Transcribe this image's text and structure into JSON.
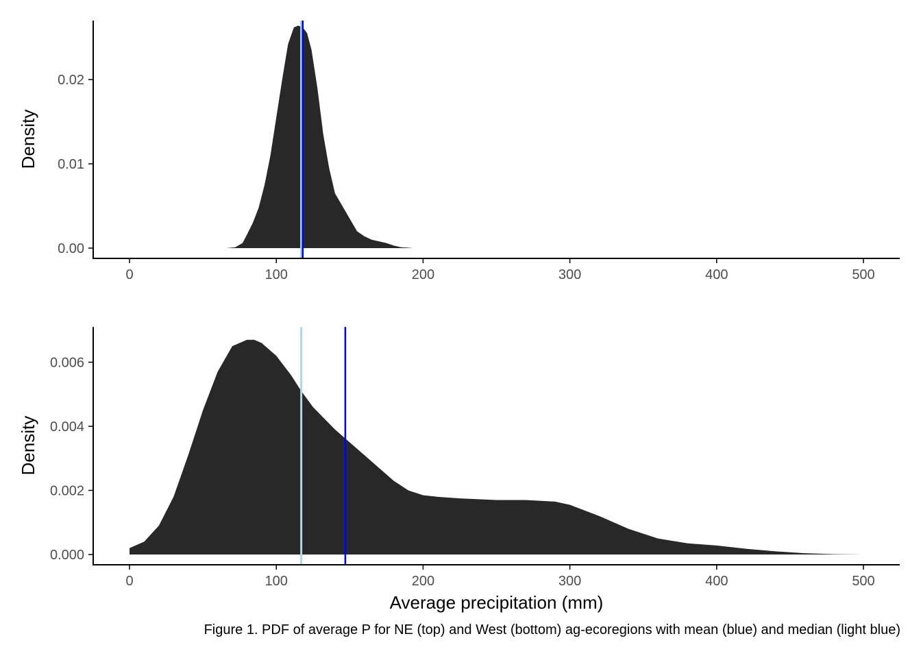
{
  "caption": "Figure 1. PDF of average P for NE (top) and West (bottom) ag-ecoregions with mean (blue) and median (light blue)",
  "colors": {
    "fill": "#282828",
    "mean": "#0000ff",
    "median": "#add8e6",
    "axis": "#000000",
    "tick_text": "#4d4d4d"
  },
  "chart_data": [
    {
      "type": "area",
      "panel": "top",
      "title": "",
      "xlabel": "",
      "ylabel": "Density",
      "xlim": [
        0,
        500
      ],
      "ylim": [
        0,
        0.027
      ],
      "x_ticks": [
        0,
        100,
        200,
        300,
        400,
        500
      ],
      "x_tick_labels": [
        "0",
        "100",
        "200",
        "300",
        "400",
        "500"
      ],
      "y_ticks": [
        0,
        0.01,
        0.02
      ],
      "y_tick_labels": [
        "0.00",
        "0.01",
        "0.02"
      ],
      "grid": false,
      "series": [
        {
          "x": [
            66,
            72,
            77,
            80,
            84,
            88,
            92,
            96,
            100,
            104,
            108,
            112,
            115,
            118,
            121,
            124,
            128,
            132,
            136,
            140,
            145,
            150,
            155,
            160,
            165,
            170,
            175,
            180,
            185,
            190,
            193
          ],
          "y": [
            0,
            0.0001,
            0.0006,
            0.0016,
            0.003,
            0.0048,
            0.0075,
            0.011,
            0.0155,
            0.02,
            0.0242,
            0.0262,
            0.0264,
            0.0262,
            0.0255,
            0.0235,
            0.019,
            0.0135,
            0.0095,
            0.0065,
            0.005,
            0.0035,
            0.002,
            0.0014,
            0.001,
            0.0008,
            0.0006,
            0.0003,
            0.0001,
            5e-05,
            0
          ]
        }
      ],
      "mean": 118,
      "median": 117
    },
    {
      "type": "area",
      "panel": "bottom",
      "title": "",
      "xlabel": "Average precipitation (mm)",
      "ylabel": "Density",
      "xlim": [
        0,
        500
      ],
      "ylim": [
        0,
        0.0071
      ],
      "x_ticks": [
        0,
        100,
        200,
        300,
        400,
        500
      ],
      "x_tick_labels": [
        "0",
        "100",
        "200",
        "300",
        "400",
        "500"
      ],
      "y_ticks": [
        0,
        0.002,
        0.004,
        0.006
      ],
      "y_tick_labels": [
        "0.000",
        "0.002",
        "0.004",
        "0.006"
      ],
      "grid": false,
      "series": [
        {
          "x": [
            0,
            10,
            20,
            30,
            40,
            50,
            60,
            70,
            80,
            85,
            90,
            100,
            110,
            117,
            125,
            140,
            150,
            160,
            170,
            180,
            190,
            200,
            210,
            225,
            250,
            270,
            290,
            300,
            320,
            340,
            360,
            380,
            400,
            420,
            440,
            460,
            480,
            500
          ],
          "y": [
            0.0002,
            0.0004,
            0.0009,
            0.0018,
            0.0031,
            0.0045,
            0.0057,
            0.0065,
            0.0067,
            0.0067,
            0.0066,
            0.0062,
            0.0056,
            0.0051,
            0.0046,
            0.0039,
            0.0035,
            0.0031,
            0.0027,
            0.0023,
            0.002,
            0.00185,
            0.0018,
            0.00175,
            0.0017,
            0.0017,
            0.00165,
            0.00155,
            0.0012,
            0.0008,
            0.0005,
            0.00035,
            0.00028,
            0.00018,
            0.0001,
            4e-05,
            1e-05,
            0
          ]
        }
      ],
      "mean": 147,
      "median": 117
    }
  ]
}
